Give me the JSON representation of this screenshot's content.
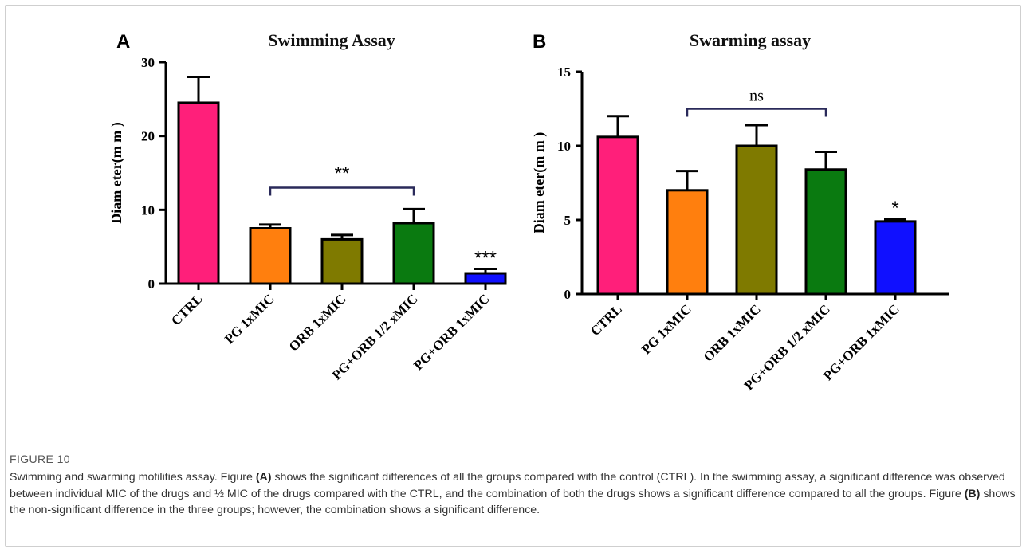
{
  "figure": {
    "heading": "FIGURE 10",
    "caption_segments": [
      "Swimming and swarming motilities assay. Figure ",
      "(A)",
      " shows the significant differences of all the groups compared with the control (CTRL). In the swimming assay, a significant difference was observed between individual MIC of the drugs and ½ MIC of the drugs compared with the CTRL, and the combination of both the drugs shows a significant difference compared to all the groups. Figure ",
      "(B)",
      " shows the non-significant difference in the three groups; however, the combination shows a significant difference."
    ]
  },
  "chart_data": [
    {
      "panel": "A",
      "type": "bar",
      "title": "Swimming Assay",
      "ylabel": "Diam eter(m m )",
      "xlabel": "",
      "categories": [
        "CTRL",
        "PG 1xMIC",
        "ORB 1xMIC",
        "PG+ORB 1/2 xMIC",
        "PG+ORB 1xMIC"
      ],
      "values": [
        24.5,
        7.5,
        6.0,
        8.2,
        1.4
      ],
      "errors": [
        3.5,
        0.5,
        0.6,
        1.9,
        0.6
      ],
      "colors": [
        "#ff1f7a",
        "#ff7f0e",
        "#7f7a00",
        "#0a7a10",
        "#1010ff"
      ],
      "ylim": [
        0,
        30
      ],
      "yticks": [
        0,
        10,
        20,
        30
      ],
      "annotations": {
        "bracket": {
          "from": 1,
          "to": 3,
          "y": 13,
          "label": "**"
        },
        "bar_labels": [
          {
            "index": 4,
            "label": "***"
          }
        ]
      }
    },
    {
      "panel": "B",
      "type": "bar",
      "title": "Swarming assay",
      "ylabel": "Diam eter(m m )",
      "xlabel": "",
      "categories": [
        "CTRL",
        "PG 1xMIC",
        "ORB 1xMIC",
        "PG+ORB 1/2 xMIC",
        "PG+ORB 1xMIC"
      ],
      "values": [
        10.6,
        7.0,
        10.0,
        8.4,
        4.9
      ],
      "errors": [
        1.4,
        1.3,
        1.4,
        1.2,
        0.15
      ],
      "colors": [
        "#ff1f7a",
        "#ff7f0e",
        "#7f7a00",
        "#0a7a10",
        "#1010ff"
      ],
      "ylim": [
        0,
        15
      ],
      "yticks": [
        0,
        5,
        10,
        15
      ],
      "annotations": {
        "bracket": {
          "from": 1,
          "to": 3,
          "y": 12.5,
          "label": "ns"
        },
        "bar_labels": [
          {
            "index": 4,
            "label": "*"
          }
        ]
      }
    }
  ]
}
